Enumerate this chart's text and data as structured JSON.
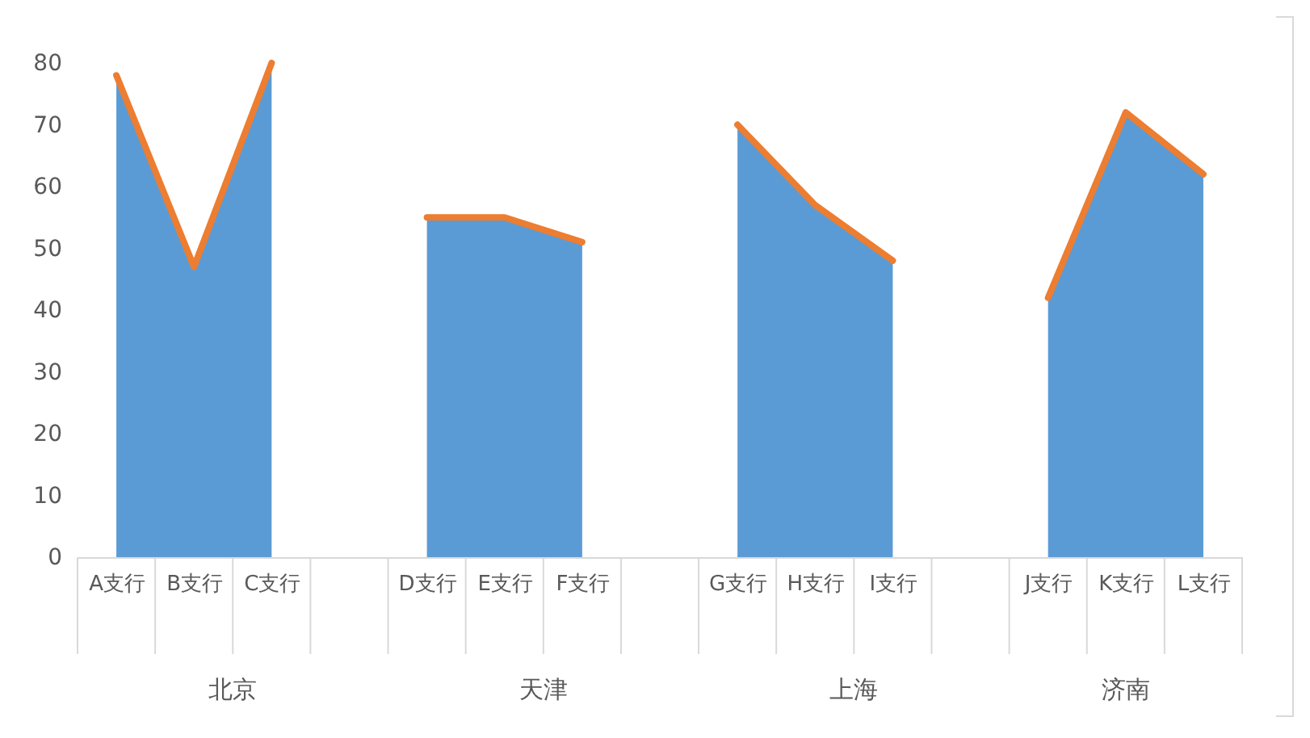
{
  "chart_data": {
    "type": "area",
    "categories": [
      "A支行",
      "B支行",
      "C支行",
      null,
      "D支行",
      "E支行",
      "F支行",
      null,
      "G支行",
      "H支行",
      "I支行",
      null,
      "J支行",
      "K支行",
      "L支行"
    ],
    "series": [
      {
        "color": "#5b9bd5",
        "values": [
          78,
          47,
          80,
          null,
          55,
          55,
          51,
          null,
          70,
          57,
          48,
          null,
          42,
          72,
          62
        ]
      },
      {
        "type": "line",
        "color": "#ed7d31",
        "values": [
          78,
          47,
          80,
          null,
          55,
          55,
          51,
          null,
          70,
          57,
          48,
          null,
          42,
          72,
          62
        ]
      }
    ],
    "annotations": [
      "北京",
      "天津",
      "上海",
      "济南"
    ],
    "ylim": [
      0,
      80
    ],
    "yticks": [
      0,
      10,
      20,
      30,
      40,
      50,
      60,
      70,
      80
    ]
  }
}
